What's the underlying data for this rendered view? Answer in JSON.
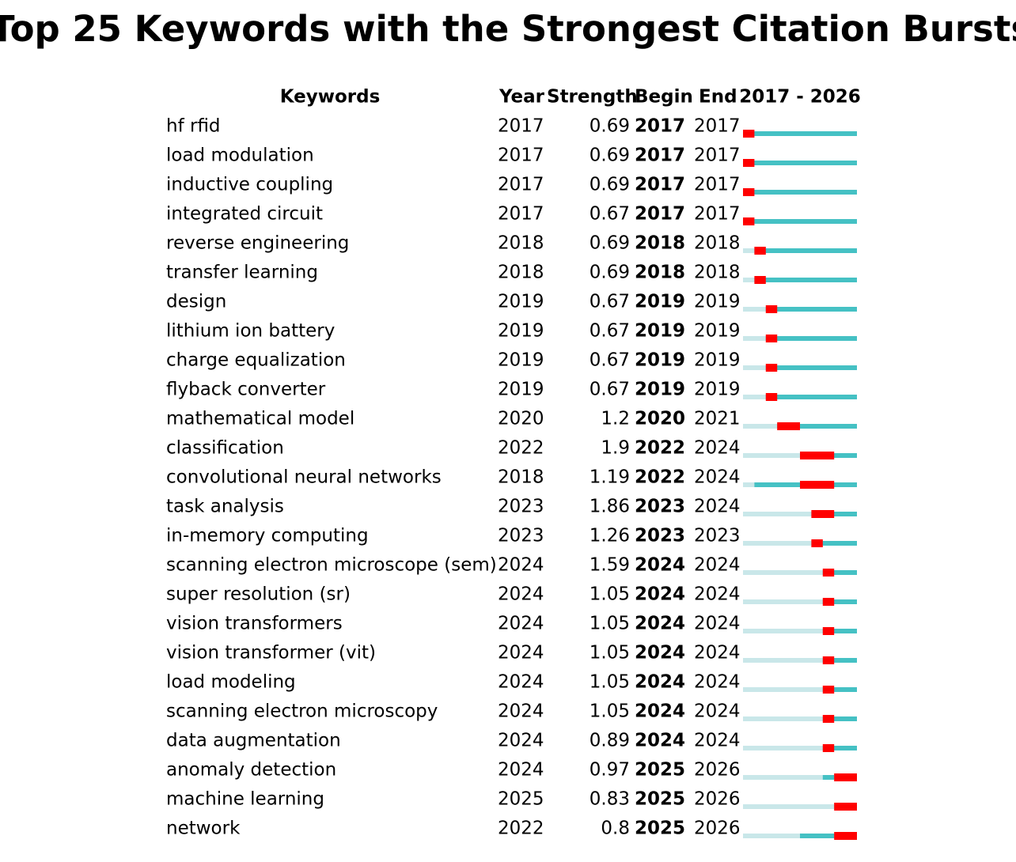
{
  "title": "Top 25 Keywords with the Strongest Citation Bursts",
  "table": {
    "headers": {
      "keyword": "Keywords",
      "year": "Year",
      "strength": "Strength",
      "begin": "Begin",
      "end": "End",
      "timeline": "2017 - 2026"
    },
    "rows": [
      {
        "keyword": "hf rfid",
        "year": 2017,
        "strength": 0.69,
        "begin": 2017,
        "end": 2017
      },
      {
        "keyword": "load modulation",
        "year": 2017,
        "strength": 0.69,
        "begin": 2017,
        "end": 2017
      },
      {
        "keyword": "inductive coupling",
        "year": 2017,
        "strength": 0.69,
        "begin": 2017,
        "end": 2017
      },
      {
        "keyword": "integrated circuit",
        "year": 2017,
        "strength": 0.67,
        "begin": 2017,
        "end": 2017
      },
      {
        "keyword": "reverse engineering",
        "year": 2018,
        "strength": 0.69,
        "begin": 2018,
        "end": 2018
      },
      {
        "keyword": "transfer learning",
        "year": 2018,
        "strength": 0.69,
        "begin": 2018,
        "end": 2018
      },
      {
        "keyword": "design",
        "year": 2019,
        "strength": 0.67,
        "begin": 2019,
        "end": 2019
      },
      {
        "keyword": "lithium ion battery",
        "year": 2019,
        "strength": 0.67,
        "begin": 2019,
        "end": 2019
      },
      {
        "keyword": "charge equalization",
        "year": 2019,
        "strength": 0.67,
        "begin": 2019,
        "end": 2019
      },
      {
        "keyword": "flyback converter",
        "year": 2019,
        "strength": 0.67,
        "begin": 2019,
        "end": 2019
      },
      {
        "keyword": "mathematical model",
        "year": 2020,
        "strength": 1.2,
        "begin": 2020,
        "end": 2021
      },
      {
        "keyword": "classification",
        "year": 2022,
        "strength": 1.9,
        "begin": 2022,
        "end": 2024
      },
      {
        "keyword": "convolutional neural networks",
        "year": 2018,
        "strength": 1.19,
        "begin": 2022,
        "end": 2024
      },
      {
        "keyword": "task analysis",
        "year": 2023,
        "strength": 1.86,
        "begin": 2023,
        "end": 2024
      },
      {
        "keyword": "in-memory computing",
        "year": 2023,
        "strength": 1.26,
        "begin": 2023,
        "end": 2023
      },
      {
        "keyword": "scanning electron microscope (sem)",
        "year": 2024,
        "strength": 1.59,
        "begin": 2024,
        "end": 2024
      },
      {
        "keyword": "super resolution (sr)",
        "year": 2024,
        "strength": 1.05,
        "begin": 2024,
        "end": 2024
      },
      {
        "keyword": "vision transformers",
        "year": 2024,
        "strength": 1.05,
        "begin": 2024,
        "end": 2024
      },
      {
        "keyword": "vision transformer (vit)",
        "year": 2024,
        "strength": 1.05,
        "begin": 2024,
        "end": 2024
      },
      {
        "keyword": "load modeling",
        "year": 2024,
        "strength": 1.05,
        "begin": 2024,
        "end": 2024
      },
      {
        "keyword": "scanning electron microscopy",
        "year": 2024,
        "strength": 1.05,
        "begin": 2024,
        "end": 2024
      },
      {
        "keyword": "data augmentation",
        "year": 2024,
        "strength": 0.89,
        "begin": 2024,
        "end": 2024
      },
      {
        "keyword": "anomaly detection",
        "year": 2024,
        "strength": 0.97,
        "begin": 2025,
        "end": 2026
      },
      {
        "keyword": "machine learning",
        "year": 2025,
        "strength": 0.83,
        "begin": 2025,
        "end": 2026
      },
      {
        "keyword": "network",
        "year": 2022,
        "strength": 0.8,
        "begin": 2025,
        "end": 2026
      }
    ]
  }
}
